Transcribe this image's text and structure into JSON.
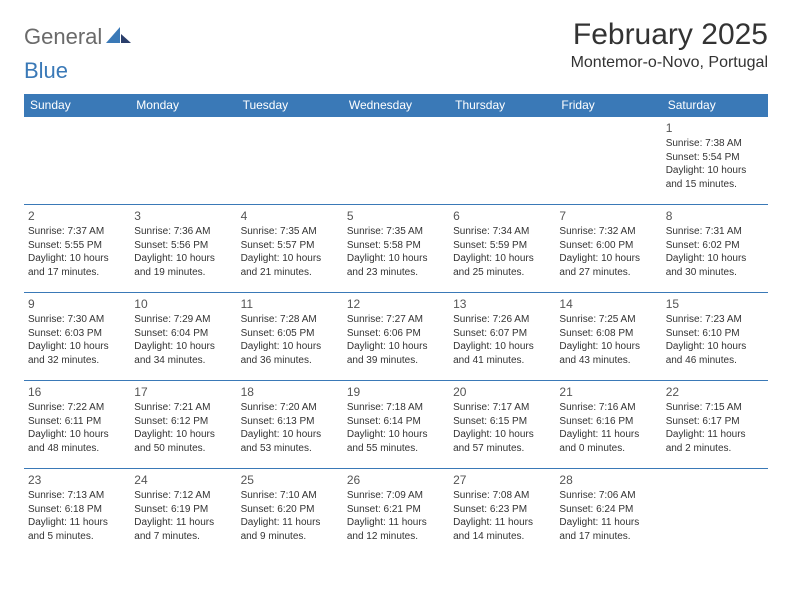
{
  "logo": {
    "text1": "General",
    "text2": "Blue"
  },
  "title": "February 2025",
  "location": "Montemor-o-Novo, Portugal",
  "colors": {
    "header_bg": "#3a79b7",
    "header_text": "#ffffff",
    "border": "#3a79b7",
    "logo_gray": "#6a6a6a",
    "logo_blue": "#3a79b7",
    "body_text": "#333333",
    "background": "#ffffff"
  },
  "typography": {
    "title_fontsize": 30,
    "location_fontsize": 16,
    "dayheader_fontsize": 12,
    "daynum_fontsize": 12,
    "cell_fontsize": 10
  },
  "calendar": {
    "type": "table",
    "columns": [
      "Sunday",
      "Monday",
      "Tuesday",
      "Wednesday",
      "Thursday",
      "Friday",
      "Saturday"
    ],
    "weeks": [
      [
        null,
        null,
        null,
        null,
        null,
        null,
        {
          "d": "1",
          "sr": "7:38 AM",
          "ss": "5:54 PM",
          "dl": "10 hours and 15 minutes."
        }
      ],
      [
        {
          "d": "2",
          "sr": "7:37 AM",
          "ss": "5:55 PM",
          "dl": "10 hours and 17 minutes."
        },
        {
          "d": "3",
          "sr": "7:36 AM",
          "ss": "5:56 PM",
          "dl": "10 hours and 19 minutes."
        },
        {
          "d": "4",
          "sr": "7:35 AM",
          "ss": "5:57 PM",
          "dl": "10 hours and 21 minutes."
        },
        {
          "d": "5",
          "sr": "7:35 AM",
          "ss": "5:58 PM",
          "dl": "10 hours and 23 minutes."
        },
        {
          "d": "6",
          "sr": "7:34 AM",
          "ss": "5:59 PM",
          "dl": "10 hours and 25 minutes."
        },
        {
          "d": "7",
          "sr": "7:32 AM",
          "ss": "6:00 PM",
          "dl": "10 hours and 27 minutes."
        },
        {
          "d": "8",
          "sr": "7:31 AM",
          "ss": "6:02 PM",
          "dl": "10 hours and 30 minutes."
        }
      ],
      [
        {
          "d": "9",
          "sr": "7:30 AM",
          "ss": "6:03 PM",
          "dl": "10 hours and 32 minutes."
        },
        {
          "d": "10",
          "sr": "7:29 AM",
          "ss": "6:04 PM",
          "dl": "10 hours and 34 minutes."
        },
        {
          "d": "11",
          "sr": "7:28 AM",
          "ss": "6:05 PM",
          "dl": "10 hours and 36 minutes."
        },
        {
          "d": "12",
          "sr": "7:27 AM",
          "ss": "6:06 PM",
          "dl": "10 hours and 39 minutes."
        },
        {
          "d": "13",
          "sr": "7:26 AM",
          "ss": "6:07 PM",
          "dl": "10 hours and 41 minutes."
        },
        {
          "d": "14",
          "sr": "7:25 AM",
          "ss": "6:08 PM",
          "dl": "10 hours and 43 minutes."
        },
        {
          "d": "15",
          "sr": "7:23 AM",
          "ss": "6:10 PM",
          "dl": "10 hours and 46 minutes."
        }
      ],
      [
        {
          "d": "16",
          "sr": "7:22 AM",
          "ss": "6:11 PM",
          "dl": "10 hours and 48 minutes."
        },
        {
          "d": "17",
          "sr": "7:21 AM",
          "ss": "6:12 PM",
          "dl": "10 hours and 50 minutes."
        },
        {
          "d": "18",
          "sr": "7:20 AM",
          "ss": "6:13 PM",
          "dl": "10 hours and 53 minutes."
        },
        {
          "d": "19",
          "sr": "7:18 AM",
          "ss": "6:14 PM",
          "dl": "10 hours and 55 minutes."
        },
        {
          "d": "20",
          "sr": "7:17 AM",
          "ss": "6:15 PM",
          "dl": "10 hours and 57 minutes."
        },
        {
          "d": "21",
          "sr": "7:16 AM",
          "ss": "6:16 PM",
          "dl": "11 hours and 0 minutes."
        },
        {
          "d": "22",
          "sr": "7:15 AM",
          "ss": "6:17 PM",
          "dl": "11 hours and 2 minutes."
        }
      ],
      [
        {
          "d": "23",
          "sr": "7:13 AM",
          "ss": "6:18 PM",
          "dl": "11 hours and 5 minutes."
        },
        {
          "d": "24",
          "sr": "7:12 AM",
          "ss": "6:19 PM",
          "dl": "11 hours and 7 minutes."
        },
        {
          "d": "25",
          "sr": "7:10 AM",
          "ss": "6:20 PM",
          "dl": "11 hours and 9 minutes."
        },
        {
          "d": "26",
          "sr": "7:09 AM",
          "ss": "6:21 PM",
          "dl": "11 hours and 12 minutes."
        },
        {
          "d": "27",
          "sr": "7:08 AM",
          "ss": "6:23 PM",
          "dl": "11 hours and 14 minutes."
        },
        {
          "d": "28",
          "sr": "7:06 AM",
          "ss": "6:24 PM",
          "dl": "11 hours and 17 minutes."
        },
        null
      ]
    ],
    "labels": {
      "sunrise": "Sunrise:",
      "sunset": "Sunset:",
      "daylight": "Daylight:"
    }
  }
}
